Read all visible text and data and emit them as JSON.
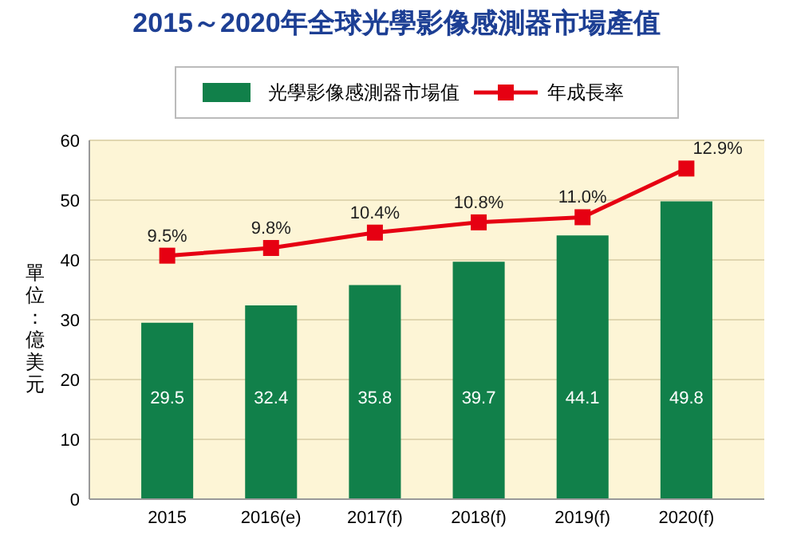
{
  "chart_data": {
    "type": "bar",
    "title": "2015～2020年全球光學影像感測器市場產值",
    "ylabel": "單位：億美元",
    "categories": [
      "2015",
      "2016(e)",
      "2017(f)",
      "2018(f)",
      "2019(f)",
      "2020(f)"
    ],
    "series": [
      {
        "name": "光學影像感測器市場值",
        "color": "#11804a",
        "values": [
          29.5,
          32.4,
          35.8,
          39.7,
          44.1,
          49.8
        ],
        "value_labels": [
          "29.5",
          "32.4",
          "35.8",
          "39.7",
          "44.1",
          "49.8"
        ]
      },
      {
        "name": "年成長率",
        "type": "line",
        "axis": "y2",
        "color": "#e60012",
        "values": [
          9.5,
          9.8,
          10.4,
          10.8,
          11.0,
          12.9
        ],
        "value_labels": [
          "9.5%",
          "9.8%",
          "10.4%",
          "10.8%",
          "11.0%",
          "12.9%"
        ]
      }
    ],
    "ylim": [
      0,
      60
    ],
    "yticks": [
      0,
      10,
      20,
      30,
      40,
      50,
      60
    ],
    "y2lim": [
      0,
      14
    ],
    "grid": "y",
    "legend": "top",
    "marker": "square"
  }
}
